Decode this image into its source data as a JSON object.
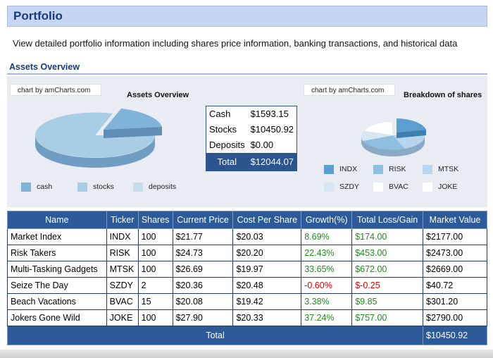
{
  "page": {
    "title": "Portfolio",
    "description": "View detailed portfolio information including shares price information, banking transactions, and historical data",
    "section_title": "Assets Overview"
  },
  "assets_chart": {
    "credit": "chart by amCharts.com",
    "title": "Assets Overview",
    "legend": [
      {
        "label": "cash",
        "color": "#7fb4d8"
      },
      {
        "label": "stocks",
        "color": "#a9cde4"
      },
      {
        "label": "deposits",
        "color": "#c4dcec"
      }
    ]
  },
  "shares_chart": {
    "credit": "chart by amCharts.com",
    "title": "Breakdown of shares",
    "legend": [
      {
        "label": "INDX",
        "color": "#5a9fd0"
      },
      {
        "label": "RISK",
        "color": "#8fbfe0"
      },
      {
        "label": "MTSK",
        "color": "#b7d6ec"
      },
      {
        "label": "SZDY",
        "color": "#d6e7f3"
      },
      {
        "label": "BVAC",
        "color": "#ffffff"
      },
      {
        "label": "JOKE",
        "color": "#ffffff"
      }
    ]
  },
  "summary": {
    "rows": [
      {
        "label": "Cash",
        "value": "$1593.15"
      },
      {
        "label": "Stocks",
        "value": "$10450.92"
      },
      {
        "label": "Deposits",
        "value": "$0.00"
      }
    ],
    "total_label": "Total",
    "total_value": "$12044.07"
  },
  "holdings": {
    "headers": [
      "Name",
      "Ticker",
      "Shares",
      "Current Price",
      "Cost Per Share",
      "Growth(%)",
      "Total Loss/Gain",
      "Market Value"
    ],
    "rows": [
      {
        "name": "Market Index",
        "ticker": "INDX",
        "shares": "100",
        "price": "$21.77",
        "cost": "$20.03",
        "growth": "8.69%",
        "gain": "$174.00",
        "value": "$2177.00"
      },
      {
        "name": "Risk Takers",
        "ticker": "RISK",
        "shares": "100",
        "price": "$24.73",
        "cost": "$20.20",
        "growth": "22.43%",
        "gain": "$453.00",
        "value": "$2473.00"
      },
      {
        "name": "Multi-Tasking Gadgets",
        "ticker": "MTSK",
        "shares": "100",
        "price": "$26.69",
        "cost": "$19.97",
        "growth": "33.65%",
        "gain": "$672.00",
        "value": "$2669.00"
      },
      {
        "name": "Seize The Day",
        "ticker": "SZDY",
        "shares": "2",
        "price": "$20.36",
        "cost": "$20.48",
        "growth": "-0.60%",
        "gain": "$-0.25",
        "value": "$40.72"
      },
      {
        "name": "Beach Vacations",
        "ticker": "BVAC",
        "shares": "15",
        "price": "$20.08",
        "cost": "$19.42",
        "growth": "3.38%",
        "gain": "$9.85",
        "value": "$301.20"
      },
      {
        "name": "Jokers Gone Wild",
        "ticker": "JOKE",
        "shares": "100",
        "price": "$27.90",
        "cost": "$20.33",
        "growth": "37.24%",
        "gain": "$757.00",
        "value": "$2790.00"
      }
    ],
    "total_label": "Total",
    "total_value": "$10450.92",
    "positive_color": "#1e8c1e",
    "negative_color": "#e00000"
  }
}
